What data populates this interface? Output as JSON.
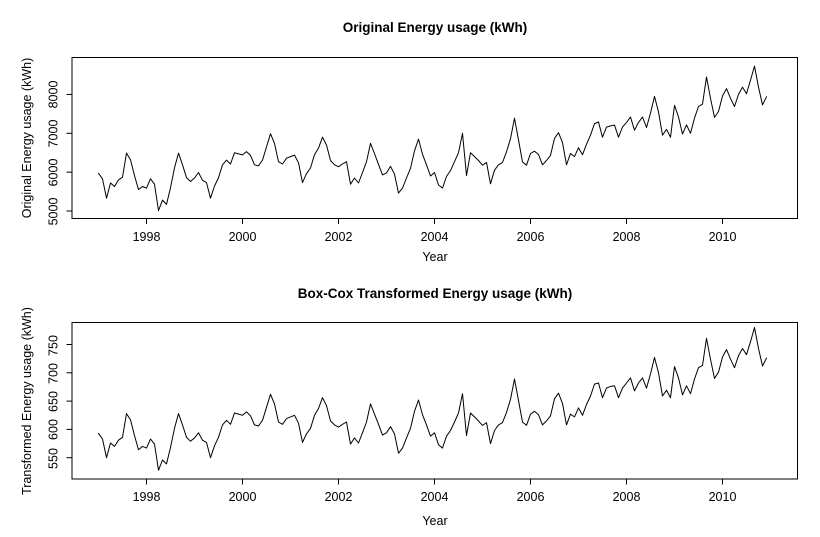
{
  "figure": {
    "background": "#ffffff",
    "line_color": "#000000",
    "frame_color": "#000000",
    "text_color": "#000000"
  },
  "chart_data": [
    {
      "type": "line",
      "title": "Original Energy usage (kWh)",
      "xlabel": "Year",
      "ylabel": "Original Energy usage (kWh)",
      "x_axis": {
        "ticks": [
          1998,
          2000,
          2002,
          2004,
          2006,
          2008,
          2010
        ],
        "start_year": 1997,
        "frequency": "monthly"
      },
      "y_axis": {
        "ticks": [
          5000,
          6000,
          7000,
          8000
        ]
      },
      "xlim": [
        1996.45,
        2011.5
      ],
      "ylim": [
        4810,
        8950
      ],
      "grid": false,
      "legend": "none",
      "series": [
        {
          "name": "Original Energy usage",
          "values": [
            5970,
            5830,
            5330,
            5720,
            5630,
            5800,
            5870,
            6490,
            6320,
            5910,
            5550,
            5630,
            5590,
            5830,
            5690,
            5010,
            5280,
            5170,
            5600,
            6110,
            6490,
            6190,
            5860,
            5760,
            5850,
            5990,
            5790,
            5730,
            5330,
            5640,
            5860,
            6190,
            6310,
            6210,
            6500,
            6470,
            6445,
            6530,
            6430,
            6190,
            6160,
            6310,
            6650,
            6990,
            6740,
            6270,
            6210,
            6360,
            6400,
            6440,
            6240,
            5730,
            5960,
            6110,
            6450,
            6620,
            6900,
            6700,
            6300,
            6190,
            6140,
            6210,
            6270,
            5690,
            5850,
            5720,
            5990,
            6270,
            6740,
            6480,
            6200,
            5930,
            5980,
            6150,
            5950,
            5460,
            5590,
            5850,
            6100,
            6550,
            6850,
            6460,
            6190,
            5900,
            5990,
            5670,
            5590,
            5890,
            6040,
            6270,
            6500,
            7000,
            5910,
            6500,
            6400,
            6300,
            6180,
            6250,
            5700,
            6050,
            6190,
            6250,
            6520,
            6860,
            7390,
            6830,
            6260,
            6180,
            6480,
            6540,
            6455,
            6190,
            6300,
            6430,
            6870,
            7015,
            6760,
            6190,
            6480,
            6400,
            6630,
            6450,
            6720,
            6950,
            7250,
            7290,
            6900,
            7160,
            7190,
            7210,
            6900,
            7160,
            7280,
            7420,
            7080,
            7280,
            7420,
            7150,
            7520,
            7950,
            7550,
            6950,
            7100,
            6900,
            7720,
            7420,
            6980,
            7215,
            7000,
            7390,
            7690,
            7750,
            8450,
            7900,
            7410,
            7560,
            7960,
            8150,
            7900,
            7690,
            8000,
            8190,
            8020,
            8370,
            8730,
            8190,
            7730,
            7940
          ]
        }
      ]
    },
    {
      "type": "line",
      "title": "Box-Cox Transformed Energy usage (kWh)",
      "xlabel": "Year",
      "ylabel": "Transformed Energy usage (kWh)",
      "x_axis": {
        "ticks": [
          1998,
          2000,
          2002,
          2004,
          2006,
          2008,
          2010
        ],
        "start_year": 1997,
        "frequency": "monthly"
      },
      "y_axis": {
        "ticks": [
          550,
          600,
          650,
          700,
          750
        ]
      },
      "xlim": [
        1996.45,
        2011.5
      ],
      "ylim": [
        512,
        788
      ],
      "grid": false,
      "legend": "none",
      "series": [
        {
          "name": "Box-Cox transformed Energy usage",
          "values": [
            593,
            583,
            550,
            576,
            570,
            581,
            586,
            628,
            617,
            589,
            564,
            570,
            567,
            583,
            574,
            528,
            546,
            539,
            568,
            602,
            628,
            608,
            586,
            579,
            585,
            594,
            581,
            577,
            550,
            571,
            586,
            608,
            616,
            609,
            629,
            627,
            625,
            631,
            624,
            608,
            606,
            616,
            639,
            662,
            645,
            613,
            609,
            619,
            622,
            625,
            611,
            577,
            592,
            602,
            625,
            637,
            656,
            642,
            615,
            608,
            604,
            609,
            613,
            574,
            585,
            576,
            594,
            613,
            645,
            627,
            609,
            590,
            594,
            605,
            592,
            558,
            567,
            585,
            602,
            632,
            652,
            626,
            608,
            588,
            594,
            573,
            567,
            588,
            598,
            613,
            629,
            663,
            589,
            629,
            622,
            615,
            607,
            612,
            575,
            598,
            608,
            612,
            630,
            653,
            689,
            651,
            613,
            607,
            627,
            632,
            626,
            608,
            615,
            624,
            654,
            664,
            646,
            608,
            627,
            622,
            638,
            625,
            644,
            659,
            680,
            682,
            656,
            673,
            676,
            677,
            656,
            673,
            682,
            691,
            668,
            682,
            691,
            673,
            698,
            727,
            700,
            659,
            669,
            656,
            711,
            691,
            661,
            677,
            663,
            689,
            709,
            713,
            761,
            724,
            690,
            701,
            728,
            741,
            724,
            709,
            730,
            743,
            732,
            755,
            780,
            743,
            712,
            726
          ]
        }
      ]
    }
  ]
}
